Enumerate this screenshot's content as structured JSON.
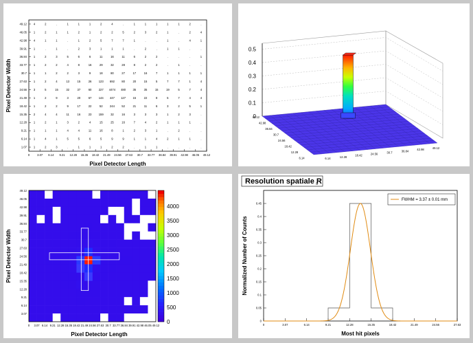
{
  "chart_data": [
    {
      "id": "hitmap_text",
      "type": "heatmap",
      "xlabel": "Pixel Detector Length",
      "ylabel": "Pixel Detector Width",
      "x_ticks": [
        "0",
        "3.07",
        "6.14",
        "9.21",
        "12.28",
        "15.35",
        "18.42",
        "21.49",
        "24.56",
        "27.63",
        "30.7",
        "33.77",
        "36.84",
        "39.91",
        "42.98",
        "46.05",
        "49.12"
      ],
      "y_ticks": [
        "1.07",
        "6.14",
        "9.21",
        "12.28",
        "15.35",
        "18.42",
        "21.49",
        "24.56",
        "27.63",
        "30.7",
        "33.77",
        "36.84",
        "39.91",
        "42.98",
        "46.05",
        "49.12"
      ],
      "rows_top_to_bottom": [
        [
          4,
          2,
          "",
          1,
          1,
          1,
          2,
          4,
          "",
          1,
          1,
          1,
          1,
          1,
          2,
          ""
        ],
        [
          1,
          2,
          1,
          1,
          2,
          1,
          2,
          2,
          5,
          2,
          3,
          2,
          1,
          "",
          2,
          4
        ],
        [
          4,
          1,
          1,
          "",
          1,
          2,
          5,
          7,
          7,
          1,
          "",
          "",
          1,
          "",
          4,
          1
        ],
        [
          1,
          "",
          1,
          "",
          2,
          3,
          1,
          1,
          1,
          "",
          2,
          "",
          1,
          1,
          "",
          ""
        ],
        [
          1,
          2,
          3,
          5,
          6,
          6,
          11,
          16,
          11,
          6,
          2,
          2,
          "",
          "",
          "",
          1
        ],
        [
          1,
          2,
          2,
          4,
          8,
          16,
          29,
          32,
          28,
          8,
          2,
          2,
          "",
          1,
          "",
          ""
        ],
        [
          1,
          1,
          2,
          2,
          3,
          9,
          18,
          80,
          27,
          17,
          16,
          7,
          1,
          1,
          1,
          1
        ],
        [
          1,
          2,
          4,
          13,
          15,
          26,
          123,
          692,
          80,
          20,
          15,
          5,
          7,
          7,
          1,
          4
        ],
        [
          3,
          5,
          15,
          32,
          37,
          60,
          227,
          4474,
          480,
          35,
          35,
          15,
          19,
          5,
          7,
          4
        ],
        [
          1,
          2,
          9,
          3,
          20,
          67,
          144,
          447,
          127,
          15,
          22,
          8,
          5,
          7,
          4,
          4
        ],
        [
          1,
          2,
          2,
          9,
          17,
          22,
          52,
          244,
          52,
          21,
          11,
          6,
          3,
          2,
          5,
          1
        ],
        [
          2,
          4,
          4,
          11,
          16,
          23,
          159,
          32,
          16,
          3,
          3,
          3,
          1,
          2,
          3,
          ""
        ],
        [
          1,
          2,
          1,
          3,
          2,
          4,
          15,
          25,
          16,
          7,
          4,
          2,
          1,
          1,
          1,
          ""
        ],
        [
          1,
          1,
          1,
          4,
          4,
          11,
          16,
          8,
          1,
          2,
          3,
          1,
          "",
          2,
          "",
          ""
        ],
        [
          1,
          4,
          1,
          5,
          5,
          6,
          5,
          9,
          9,
          1,
          1,
          4,
          2,
          1,
          1,
          ""
        ],
        [
          1,
          2,
          3,
          "",
          1,
          1,
          1,
          2,
          2,
          "",
          1,
          1,
          "",
          "",
          "",
          ""
        ]
      ]
    },
    {
      "id": "lego_3d",
      "type": "bar",
      "z_ticks": [
        "0",
        "0.1",
        "0.2",
        "0.3",
        "0.4",
        "0.5"
      ],
      "y_ticks": [
        "49.12",
        "42.98",
        "36.84",
        "30.7",
        "24.56",
        "18.42",
        "12.28",
        "6.14"
      ],
      "x_ticks": [
        "6.14",
        "12.28",
        "18.42",
        "24.56",
        "30.7",
        "36.84",
        "42.98",
        "49.12"
      ],
      "peak_value": 0.45
    },
    {
      "id": "colz_map",
      "type": "heatmap",
      "xlabel": "Pixel Detector Length",
      "ylabel": "Pixel Detector Width",
      "x_ticks": [
        "0",
        "3.07",
        "6.14",
        "9.21",
        "12.28",
        "15.35",
        "18.42",
        "21.49",
        "24.56",
        "27.63",
        "30.7",
        "33.77",
        "36.84",
        "39.91",
        "42.98",
        "46.05",
        "49.12"
      ],
      "y_ticks": [
        "3.07",
        "6.14",
        "9.21",
        "12.28",
        "15.35",
        "18.42",
        "21.49",
        "24.56",
        "27.63",
        "30.7",
        "33.77",
        "36.84",
        "39.91",
        "42.98",
        "46.05",
        "49.12"
      ],
      "z_ticks": [
        "0",
        "500",
        "1000",
        "1500",
        "2000",
        "2500",
        "3000",
        "3500",
        "4000"
      ],
      "zmax": 4474
    },
    {
      "id": "resolution",
      "type": "line",
      "title": "Resolution spatiale R",
      "title_sub": "s",
      "xlabel": "Most hit pixels",
      "ylabel": "Normalized Number of Counts",
      "x_ticks": [
        "0",
        "3.07",
        "6.14",
        "9.21",
        "12.28",
        "15.35",
        "18.42",
        "21.49",
        "24.56",
        "27.63"
      ],
      "y_ticks": [
        "0",
        "0.05",
        "0.1",
        "0.15",
        "0.2",
        "0.25",
        "0.3",
        "0.35",
        "0.4",
        "0.45"
      ],
      "xlim": [
        0,
        27.63
      ],
      "ylim": [
        0,
        0.5
      ],
      "legend": "FWHM = 3.37 ± 0.01 mm",
      "legend_position": "top-right",
      "histogram": {
        "edges": [
          0,
          3.07,
          6.14,
          9.21,
          12.28,
          15.35,
          18.42,
          21.49,
          24.56,
          27.63
        ],
        "values": [
          0,
          0,
          0,
          0.05,
          0.45,
          0.05,
          0,
          0,
          0
        ]
      },
      "gauss": {
        "mean": 13.815,
        "sigma": 1.43,
        "amp": 0.45
      }
    }
  ]
}
